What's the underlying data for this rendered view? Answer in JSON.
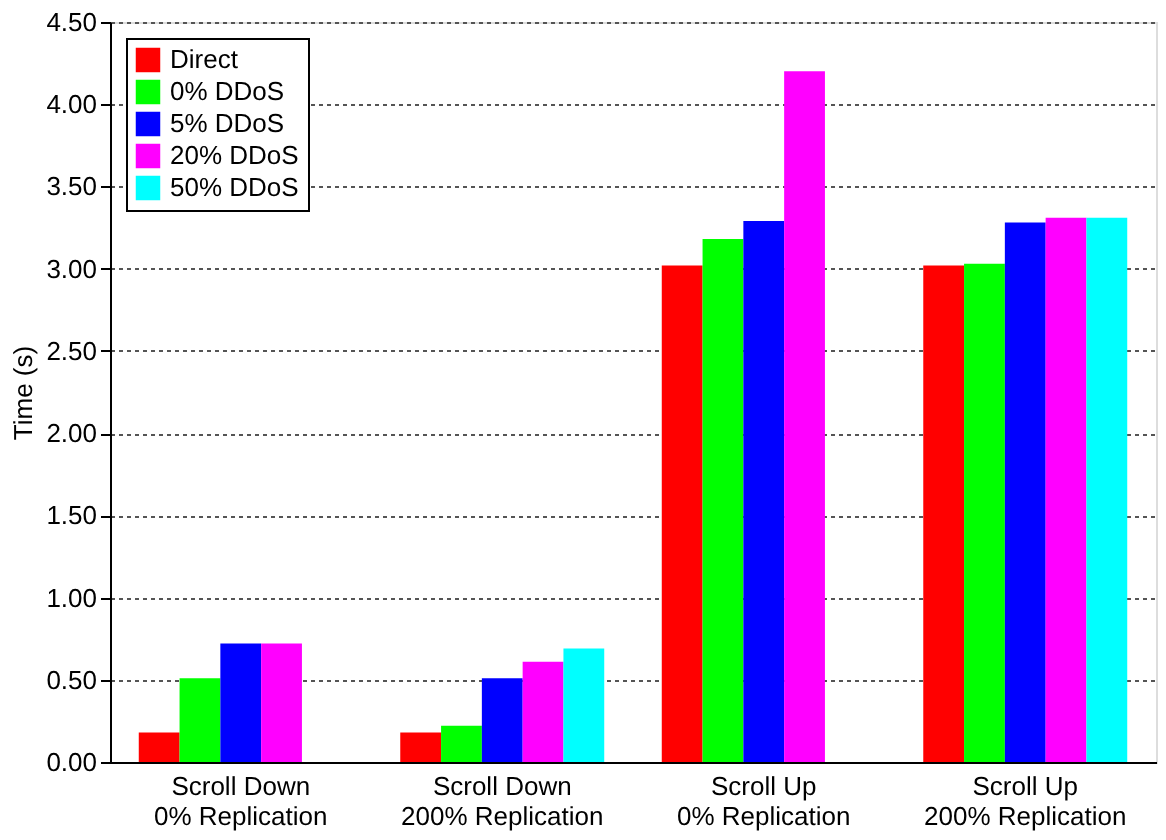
{
  "chart_data": {
    "type": "bar",
    "ylabel": "Time (s)",
    "categories": [
      "Scroll Down\n0% Replication",
      "Scroll Down\n200% Replication",
      "Scroll Up\n0% Replication",
      "Scroll Up\n200% Replication"
    ],
    "series": [
      {
        "name": "Direct",
        "color": "#ff0000",
        "values": [
          0.18,
          0.18,
          3.02,
          3.02
        ]
      },
      {
        "name": "0% DDoS",
        "color": "#00ff00",
        "values": [
          0.51,
          0.22,
          3.18,
          3.03
        ]
      },
      {
        "name": "5% DDoS",
        "color": "#0000ff",
        "values": [
          0.72,
          0.51,
          3.29,
          3.28
        ]
      },
      {
        "name": "20% DDoS",
        "color": "#ff00ff",
        "values": [
          0.72,
          0.61,
          4.2,
          3.31
        ]
      },
      {
        "name": "50% DDoS",
        "color": "#00ffff",
        "values": [
          0,
          0.69,
          0,
          3.31
        ]
      }
    ],
    "ylim": [
      0,
      4.5
    ],
    "yticks": [
      {
        "value": 0,
        "label": "0.00"
      },
      {
        "value": 0.5,
        "label": "0.50"
      },
      {
        "value": 1,
        "label": "1.00"
      },
      {
        "value": 1.5,
        "label": "1.50"
      },
      {
        "value": 2,
        "label": "2.00"
      },
      {
        "value": 2.5,
        "label": "2.50"
      },
      {
        "value": 3,
        "label": "3.00"
      },
      {
        "value": 3.5,
        "label": "3.50"
      },
      {
        "value": 4,
        "label": "4.00"
      },
      {
        "value": 4.5,
        "label": "4.50"
      }
    ],
    "grid": "y",
    "legend": "top left"
  }
}
